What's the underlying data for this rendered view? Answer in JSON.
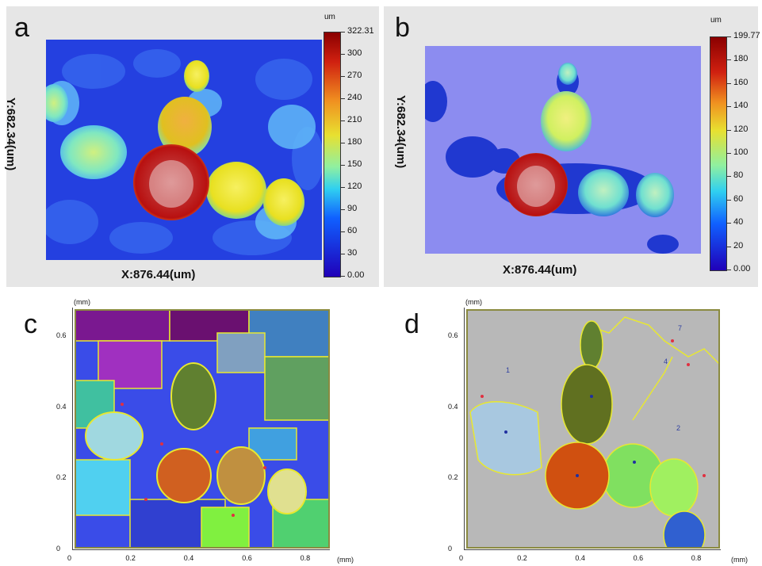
{
  "panels": {
    "a": {
      "label": "a",
      "x_axis": "X:876.44(um)",
      "y_axis": "Y:682.34(um)",
      "unit": "um",
      "colorbar_ticks": [
        "322.31",
        "300",
        "270",
        "240",
        "210",
        "180",
        "150",
        "120",
        "90",
        "60",
        "30",
        "0.00"
      ]
    },
    "b": {
      "label": "b",
      "x_axis": "X:876.44(um)",
      "y_axis": "Y:682.34(um)",
      "unit": "um",
      "colorbar_ticks": [
        "199.77",
        "180",
        "160",
        "140",
        "120",
        "100",
        "80",
        "60",
        "40",
        "20",
        "0.00"
      ]
    },
    "c": {
      "label": "c",
      "unit": "(mm)",
      "y_ticks": [
        "0.6",
        "0.4",
        "0.2",
        "0"
      ],
      "x_ticks": [
        "0",
        "0.2",
        "0.4",
        "0.6",
        "0.8"
      ]
    },
    "d": {
      "label": "d",
      "unit": "(mm)",
      "y_ticks": [
        "0.6",
        "0.4",
        "0.2",
        "0"
      ],
      "x_ticks": [
        "0",
        "0.2",
        "0.4",
        "0.6",
        "0.8"
      ],
      "region_numbers": [
        "1",
        "2",
        "4",
        "7"
      ]
    }
  },
  "colors": {
    "colormap": [
      "#2a00c8",
      "#1040ff",
      "#30c0ff",
      "#70f0c0",
      "#e0f040",
      "#f0a020",
      "#d02010",
      "#a00000"
    ],
    "grey_bg": "#b8b8b8",
    "boundary": "#e8e830"
  }
}
